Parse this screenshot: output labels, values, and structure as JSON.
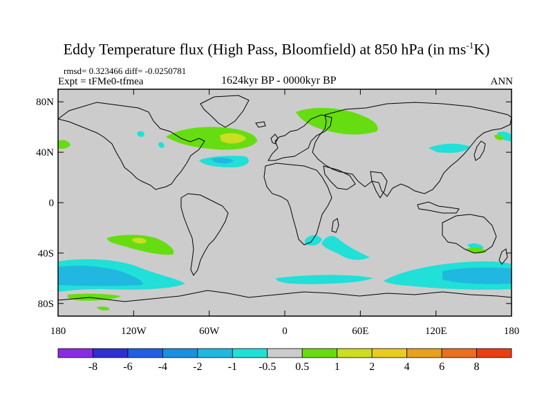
{
  "title": {
    "main": "Eddy Temperature flux (High Pass, Bloomfield) at 850 hPa (in ms",
    "sup": "-1",
    "end": "K)"
  },
  "stats": "rmsd= 0.323466 diff= -0.0250781",
  "experiment": "Expt = tFMe0-tfmea",
  "period": "1624kyr BP - 0000kyr BP",
  "season": "ANN",
  "axes": {
    "lat_ticks": [
      {
        "lat": 80,
        "label": "80N"
      },
      {
        "lat": 40,
        "label": "40N"
      },
      {
        "lat": 0,
        "label": "0"
      },
      {
        "lat": -40,
        "label": "40S"
      },
      {
        "lat": -80,
        "label": "80S"
      }
    ],
    "lon_ticks": [
      {
        "lon": -180,
        "label": "180"
      },
      {
        "lon": -120,
        "label": "120W"
      },
      {
        "lon": -60,
        "label": "60W"
      },
      {
        "lon": 0,
        "label": "0"
      },
      {
        "lon": 60,
        "label": "60E"
      },
      {
        "lon": 120,
        "label": "120E"
      },
      {
        "lon": 180,
        "label": "180"
      }
    ],
    "lat_range": [
      -90,
      90
    ],
    "lon_range": [
      -180,
      180
    ]
  },
  "colorbar": {
    "colors": [
      "#8a2be2",
      "#3030d0",
      "#2060e0",
      "#1a90e0",
      "#20b8e0",
      "#20e0d8",
      "#cccccc",
      "#66dd11",
      "#ccdd22",
      "#e8cc20",
      "#e8a020",
      "#e87020",
      "#e84010"
    ],
    "labels": [
      "-8",
      "-6",
      "-4",
      "-2",
      "-1",
      "-0.5",
      "0.5",
      "1",
      "2",
      "4",
      "6",
      "8"
    ]
  },
  "colors": {
    "neutral": "#cccccc",
    "land": "#000000"
  }
}
